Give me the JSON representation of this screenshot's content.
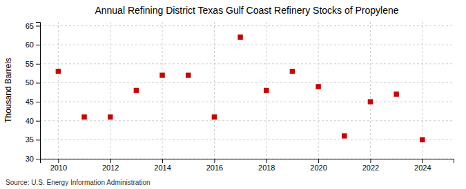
{
  "chart_data": {
    "type": "scatter",
    "title": "Annual Refining District Texas Gulf Coast Refinery Stocks of Propylene",
    "ylabel": "Thousand Barrels",
    "source": "Source: U.S. Energy Information Administration",
    "x": [
      2010,
      2011,
      2012,
      2013,
      2014,
      2015,
      2016,
      2017,
      2018,
      2019,
      2020,
      2021,
      2022,
      2023,
      2024
    ],
    "values": [
      53,
      41,
      41,
      48,
      52,
      52,
      41,
      62,
      48,
      53,
      49,
      36,
      45,
      47,
      35
    ],
    "color": "#cc0000",
    "marker": "square",
    "xlim": [
      2009.3,
      2025.2
    ],
    "ylim": [
      30,
      66
    ],
    "xticks": [
      2010,
      2012,
      2014,
      2016,
      2018,
      2020,
      2022,
      2024
    ],
    "yticks": [
      30,
      35,
      40,
      45,
      50,
      55,
      60,
      65
    ],
    "grid": true
  }
}
